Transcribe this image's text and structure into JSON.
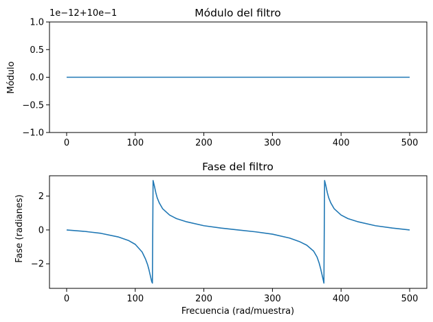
{
  "chart_data": [
    {
      "type": "line",
      "title": "Módulo del filtro",
      "xlabel": "",
      "ylabel": "Módulo",
      "offset_label": "1e−12+10e−1",
      "xlim": [
        -25,
        525
      ],
      "ylim": [
        -1.0,
        1.0
      ],
      "xticks": [
        0,
        100,
        200,
        300,
        400,
        500
      ],
      "xtick_labels": [
        "0",
        "100",
        "200",
        "300",
        "400",
        "500"
      ],
      "yticks": [
        -1.0,
        -0.5,
        0.0,
        0.5,
        1.0
      ],
      "ytick_labels": [
        "−1.0",
        "−0.5",
        "0.0",
        "0.5",
        "1.0"
      ],
      "grid": false,
      "color": "#1f77b4",
      "series": [
        {
          "x": [
            0,
            100,
            200,
            300,
            400,
            500
          ],
          "y": [
            0,
            0,
            0,
            0,
            0,
            0
          ]
        }
      ]
    },
    {
      "type": "line",
      "title": "Fase del filtro",
      "xlabel": "Frecuencia (rad/muestra)",
      "ylabel": "Fase (radianes)",
      "xlim": [
        -25,
        525
      ],
      "ylim": [
        -3.45,
        3.2
      ],
      "xticks": [
        0,
        100,
        200,
        300,
        400,
        500
      ],
      "xtick_labels": [
        "0",
        "100",
        "200",
        "300",
        "400",
        "500"
      ],
      "yticks": [
        -2,
        0,
        2
      ],
      "ytick_labels": [
        "−2",
        "0",
        "2"
      ],
      "grid": false,
      "color": "#1f77b4",
      "series": [
        {
          "x": [
            0,
            25,
            50,
            75,
            90,
            100,
            110,
            115,
            118,
            120,
            122,
            124,
            125,
            126,
            128,
            130,
            132,
            135,
            140,
            150,
            160,
            175,
            200,
            225,
            250,
            275,
            300,
            325,
            340,
            350,
            360,
            365,
            368,
            370,
            372,
            374,
            375,
            376,
            378,
            380,
            382,
            385,
            390,
            400,
            410,
            425,
            450,
            475,
            500
          ],
          "y": [
            0.0,
            -0.08,
            -0.2,
            -0.41,
            -0.62,
            -0.85,
            -1.3,
            -1.72,
            -2.05,
            -2.35,
            -2.7,
            -3.05,
            -3.14,
            2.92,
            2.58,
            2.2,
            1.9,
            1.6,
            1.25,
            0.88,
            0.67,
            0.48,
            0.25,
            0.11,
            0.0,
            -0.11,
            -0.25,
            -0.48,
            -0.7,
            -0.9,
            -1.25,
            -1.6,
            -1.95,
            -2.25,
            -2.6,
            -2.95,
            -3.14,
            2.92,
            2.58,
            2.2,
            1.9,
            1.6,
            1.25,
            0.88,
            0.67,
            0.48,
            0.25,
            0.11,
            0.0
          ]
        }
      ]
    }
  ]
}
